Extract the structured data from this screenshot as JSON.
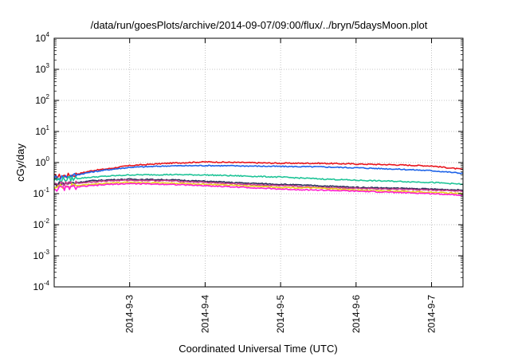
{
  "chart_data": {
    "type": "line",
    "title": "/data/run/goesPlots/archive/2014-09-07/09:00/flux/../bryn/5daysMoon.plot",
    "xlabel": "Coordinated Universal Time (UTC)",
    "ylabel": "cGy/day",
    "x_unit": "days (2014-9-3 = day 3)",
    "xlim": [
      "2014-09-02 00:00",
      "2014-09-07 10:00"
    ],
    "x_ticks": [
      "2014-9-3",
      "2014-9-4",
      "2014-9-5",
      "2014-9-6",
      "2014-9-7"
    ],
    "yscale": "log",
    "ylim": [
      0.0001,
      10000
    ],
    "y_ticks": [
      {
        "base": "10",
        "exp": "-4"
      },
      {
        "base": "10",
        "exp": "-3"
      },
      {
        "base": "10",
        "exp": "-2"
      },
      {
        "base": "10",
        "exp": "-1"
      },
      {
        "base": "10",
        "exp": "0"
      },
      {
        "base": "10",
        "exp": "1"
      },
      {
        "base": "10",
        "exp": "2"
      },
      {
        "base": "10",
        "exp": "3"
      },
      {
        "base": "10",
        "exp": "4"
      }
    ],
    "grid": true,
    "series": [
      {
        "color": "#e8141c",
        "x": [
          "2014-09-02 00:00",
          "2014-09-02 06:00",
          "2014-09-02 12:00",
          "2014-09-02 18:00",
          "2014-09-03 00:00",
          "2014-09-03 12:00",
          "2014-09-04 00:00",
          "2014-09-04 12:00",
          "2014-09-05 00:00",
          "2014-09-05 12:00",
          "2014-09-06 00:00",
          "2014-09-06 12:00",
          "2014-09-07 00:00",
          "2014-09-07 10:00"
        ],
        "values": [
          0.35,
          0.4,
          0.55,
          0.65,
          0.8,
          0.95,
          1.05,
          1.0,
          0.95,
          0.95,
          0.9,
          0.85,
          0.78,
          0.6
        ]
      },
      {
        "color": "#1c62e8",
        "x": [
          "2014-09-02 00:00",
          "2014-09-02 06:00",
          "2014-09-02 12:00",
          "2014-09-02 18:00",
          "2014-09-03 00:00",
          "2014-09-03 12:00",
          "2014-09-04 00:00",
          "2014-09-04 12:00",
          "2014-09-05 00:00",
          "2014-09-05 12:00",
          "2014-09-06 00:00",
          "2014-09-06 12:00",
          "2014-09-07 00:00",
          "2014-09-07 10:00"
        ],
        "values": [
          0.32,
          0.38,
          0.5,
          0.6,
          0.7,
          0.78,
          0.8,
          0.78,
          0.75,
          0.73,
          0.68,
          0.62,
          0.55,
          0.45
        ]
      },
      {
        "color": "#1fc497",
        "x": [
          "2014-09-02 00:00",
          "2014-09-02 06:00",
          "2014-09-02 12:00",
          "2014-09-02 18:00",
          "2014-09-03 00:00",
          "2014-09-03 12:00",
          "2014-09-04 00:00",
          "2014-09-04 12:00",
          "2014-09-05 00:00",
          "2014-09-05 12:00",
          "2014-09-06 00:00",
          "2014-09-06 12:00",
          "2014-09-07 00:00",
          "2014-09-07 10:00"
        ],
        "values": [
          0.28,
          0.3,
          0.34,
          0.37,
          0.4,
          0.41,
          0.4,
          0.37,
          0.34,
          0.3,
          0.27,
          0.25,
          0.23,
          0.2
        ]
      },
      {
        "color": "#2d2d5a",
        "x": [
          "2014-09-02 00:00",
          "2014-09-02 06:00",
          "2014-09-02 12:00",
          "2014-09-02 18:00",
          "2014-09-03 00:00",
          "2014-09-03 12:00",
          "2014-09-04 00:00",
          "2014-09-04 12:00",
          "2014-09-05 00:00",
          "2014-09-05 12:00",
          "2014-09-06 00:00",
          "2014-09-06 12:00",
          "2014-09-07 00:00",
          "2014-09-07 10:00"
        ],
        "values": [
          0.2,
          0.22,
          0.26,
          0.28,
          0.29,
          0.28,
          0.25,
          0.22,
          0.2,
          0.18,
          0.16,
          0.15,
          0.14,
          0.13
        ]
      },
      {
        "color": "#c83c8c",
        "x": [
          "2014-09-02 00:00",
          "2014-09-02 06:00",
          "2014-09-02 12:00",
          "2014-09-02 18:00",
          "2014-09-03 00:00",
          "2014-09-03 12:00",
          "2014-09-04 00:00",
          "2014-09-04 12:00",
          "2014-09-05 00:00",
          "2014-09-05 12:00",
          "2014-09-06 00:00",
          "2014-09-06 12:00",
          "2014-09-07 00:00",
          "2014-09-07 10:00"
        ],
        "values": [
          0.19,
          0.21,
          0.24,
          0.26,
          0.27,
          0.26,
          0.23,
          0.2,
          0.18,
          0.16,
          0.15,
          0.14,
          0.13,
          0.12
        ]
      },
      {
        "color": "#e9d21c",
        "x": [
          "2014-09-02 00:00",
          "2014-09-02 06:00",
          "2014-09-02 12:00",
          "2014-09-02 18:00",
          "2014-09-03 00:00",
          "2014-09-03 12:00",
          "2014-09-04 00:00",
          "2014-09-04 12:00",
          "2014-09-05 00:00",
          "2014-09-05 12:00",
          "2014-09-06 00:00",
          "2014-09-06 12:00",
          "2014-09-07 00:00",
          "2014-09-07 10:00"
        ],
        "values": [
          0.16,
          0.18,
          0.2,
          0.22,
          0.23,
          0.22,
          0.2,
          0.18,
          0.16,
          0.15,
          0.13,
          0.12,
          0.11,
          0.1
        ]
      },
      {
        "color": "#ff1fd2",
        "x": [
          "2014-09-02 00:00",
          "2014-09-02 06:00",
          "2014-09-02 12:00",
          "2014-09-02 18:00",
          "2014-09-03 00:00",
          "2014-09-03 12:00",
          "2014-09-04 00:00",
          "2014-09-04 12:00",
          "2014-09-05 00:00",
          "2014-09-05 12:00",
          "2014-09-06 00:00",
          "2014-09-06 12:00",
          "2014-09-07 00:00",
          "2014-09-07 10:00"
        ],
        "values": [
          0.14,
          0.16,
          0.18,
          0.2,
          0.21,
          0.2,
          0.18,
          0.16,
          0.14,
          0.13,
          0.12,
          0.11,
          0.1,
          0.09
        ]
      }
    ]
  }
}
